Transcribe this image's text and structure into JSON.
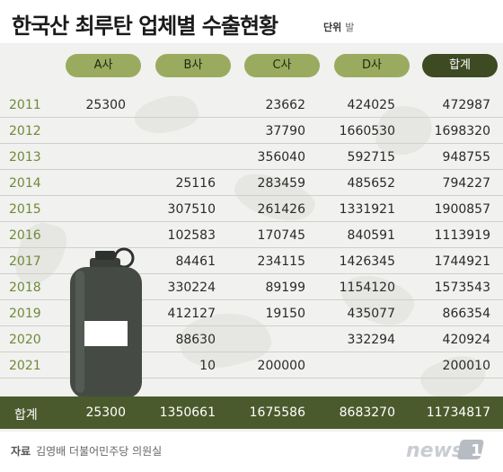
{
  "title": "한국산 최루탄 업체별 수출현황",
  "unit": {
    "label": "단위",
    "value": "발"
  },
  "columns": [
    "A사",
    "B사",
    "C사",
    "D사",
    "합계"
  ],
  "rows": [
    {
      "year": "2011",
      "a": "25300",
      "b": "",
      "c": "23662",
      "d": "424025",
      "total": "472987"
    },
    {
      "year": "2012",
      "a": "",
      "b": "",
      "c": "37790",
      "d": "1660530",
      "total": "1698320"
    },
    {
      "year": "2013",
      "a": "",
      "b": "",
      "c": "356040",
      "d": "592715",
      "total": "948755"
    },
    {
      "year": "2014",
      "a": "",
      "b": "25116",
      "c": "283459",
      "d": "485652",
      "total": "794227"
    },
    {
      "year": "2015",
      "a": "",
      "b": "307510",
      "c": "261426",
      "d": "1331921",
      "total": "1900857"
    },
    {
      "year": "2016",
      "a": "",
      "b": "102583",
      "c": "170745",
      "d": "840591",
      "total": "1113919"
    },
    {
      "year": "2017",
      "a": "",
      "b": "84461",
      "c": "234115",
      "d": "1426345",
      "total": "1744921"
    },
    {
      "year": "2018",
      "a": "",
      "b": "330224",
      "c": "89199",
      "d": "1154120",
      "total": "1573543"
    },
    {
      "year": "2019",
      "a": "",
      "b": "412127",
      "c": "19150",
      "d": "435077",
      "total": "866354"
    },
    {
      "year": "2020",
      "a": "",
      "b": "88630",
      "c": "",
      "d": "332294",
      "total": "420924"
    },
    {
      "year": "2021",
      "a": "",
      "b": "10",
      "c": "200000",
      "d": "",
      "total": "200010"
    }
  ],
  "totals": {
    "label": "합계",
    "a": "25300",
    "b": "1350661",
    "c": "1675586",
    "d": "8683270",
    "total": "11734817"
  },
  "source": {
    "label": "자료",
    "text": "김영배 더불어민주당 의원실"
  },
  "logo": {
    "text": "news1"
  },
  "colors": {
    "pill": "#9aab60",
    "pill_total": "#3d4a22",
    "year_text": "#6f8a37",
    "total_row": "#4b5a2c",
    "grenade": "#454a45"
  }
}
